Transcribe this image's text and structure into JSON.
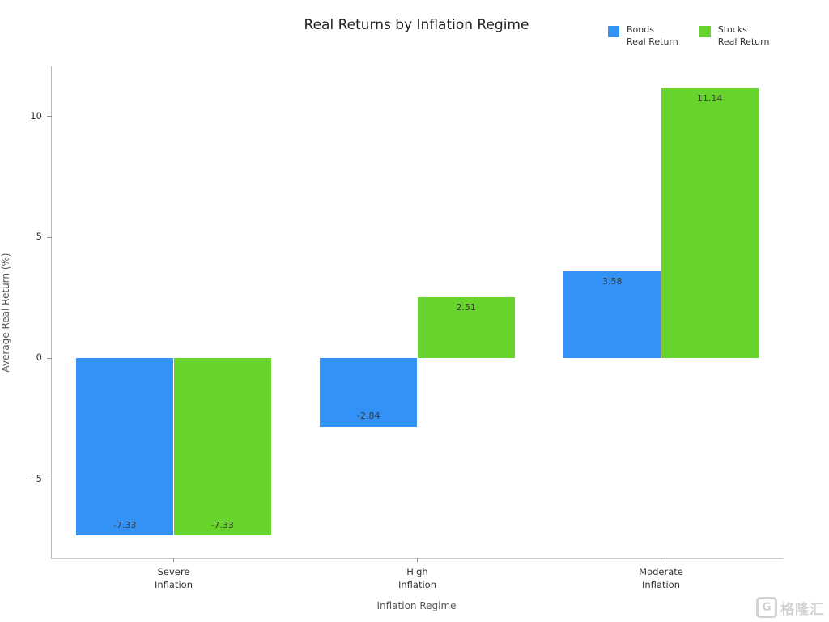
{
  "title": "Real Returns by Inflation Regime",
  "legend": {
    "items": [
      {
        "line1": "Bonds",
        "line2": "Real Return",
        "color": "#3292f5"
      },
      {
        "line1": "Stocks",
        "line2": "Real Return",
        "color": "#66d42a"
      }
    ]
  },
  "axes": {
    "xlabel": "Inflation Regime",
    "ylabel": "Average Real Return (%)"
  },
  "watermark": {
    "icon_letter": "G",
    "text": "格隆汇"
  },
  "chart_data": {
    "type": "bar",
    "title": "Real Returns by Inflation Regime",
    "xlabel": "Inflation Regime",
    "ylabel": "Average Real Return (%)",
    "categories": [
      "Severe Inflation",
      "High Inflation",
      "Moderate Inflation"
    ],
    "category_tick_lines": [
      [
        "Severe",
        "Inflation"
      ],
      [
        "High",
        "Inflation"
      ],
      [
        "Moderate",
        "Inflation"
      ]
    ],
    "series": [
      {
        "name": "Bonds Real Return",
        "color": "#3292f5",
        "values": [
          -7.33,
          -2.84,
          3.58
        ]
      },
      {
        "name": "Stocks Real Return",
        "color": "#66d42a",
        "values": [
          -7.33,
          2.51,
          11.14
        ]
      }
    ],
    "ytick_values": [
      -5,
      0,
      5,
      10
    ],
    "ytick_labels": [
      "−5",
      "0",
      "5",
      "10"
    ],
    "ylim": [
      -8.25,
      12.06
    ],
    "grid": false,
    "legend_position": "top-right",
    "bar_width_ratio": 0.4,
    "value_label_decimals": 2
  }
}
